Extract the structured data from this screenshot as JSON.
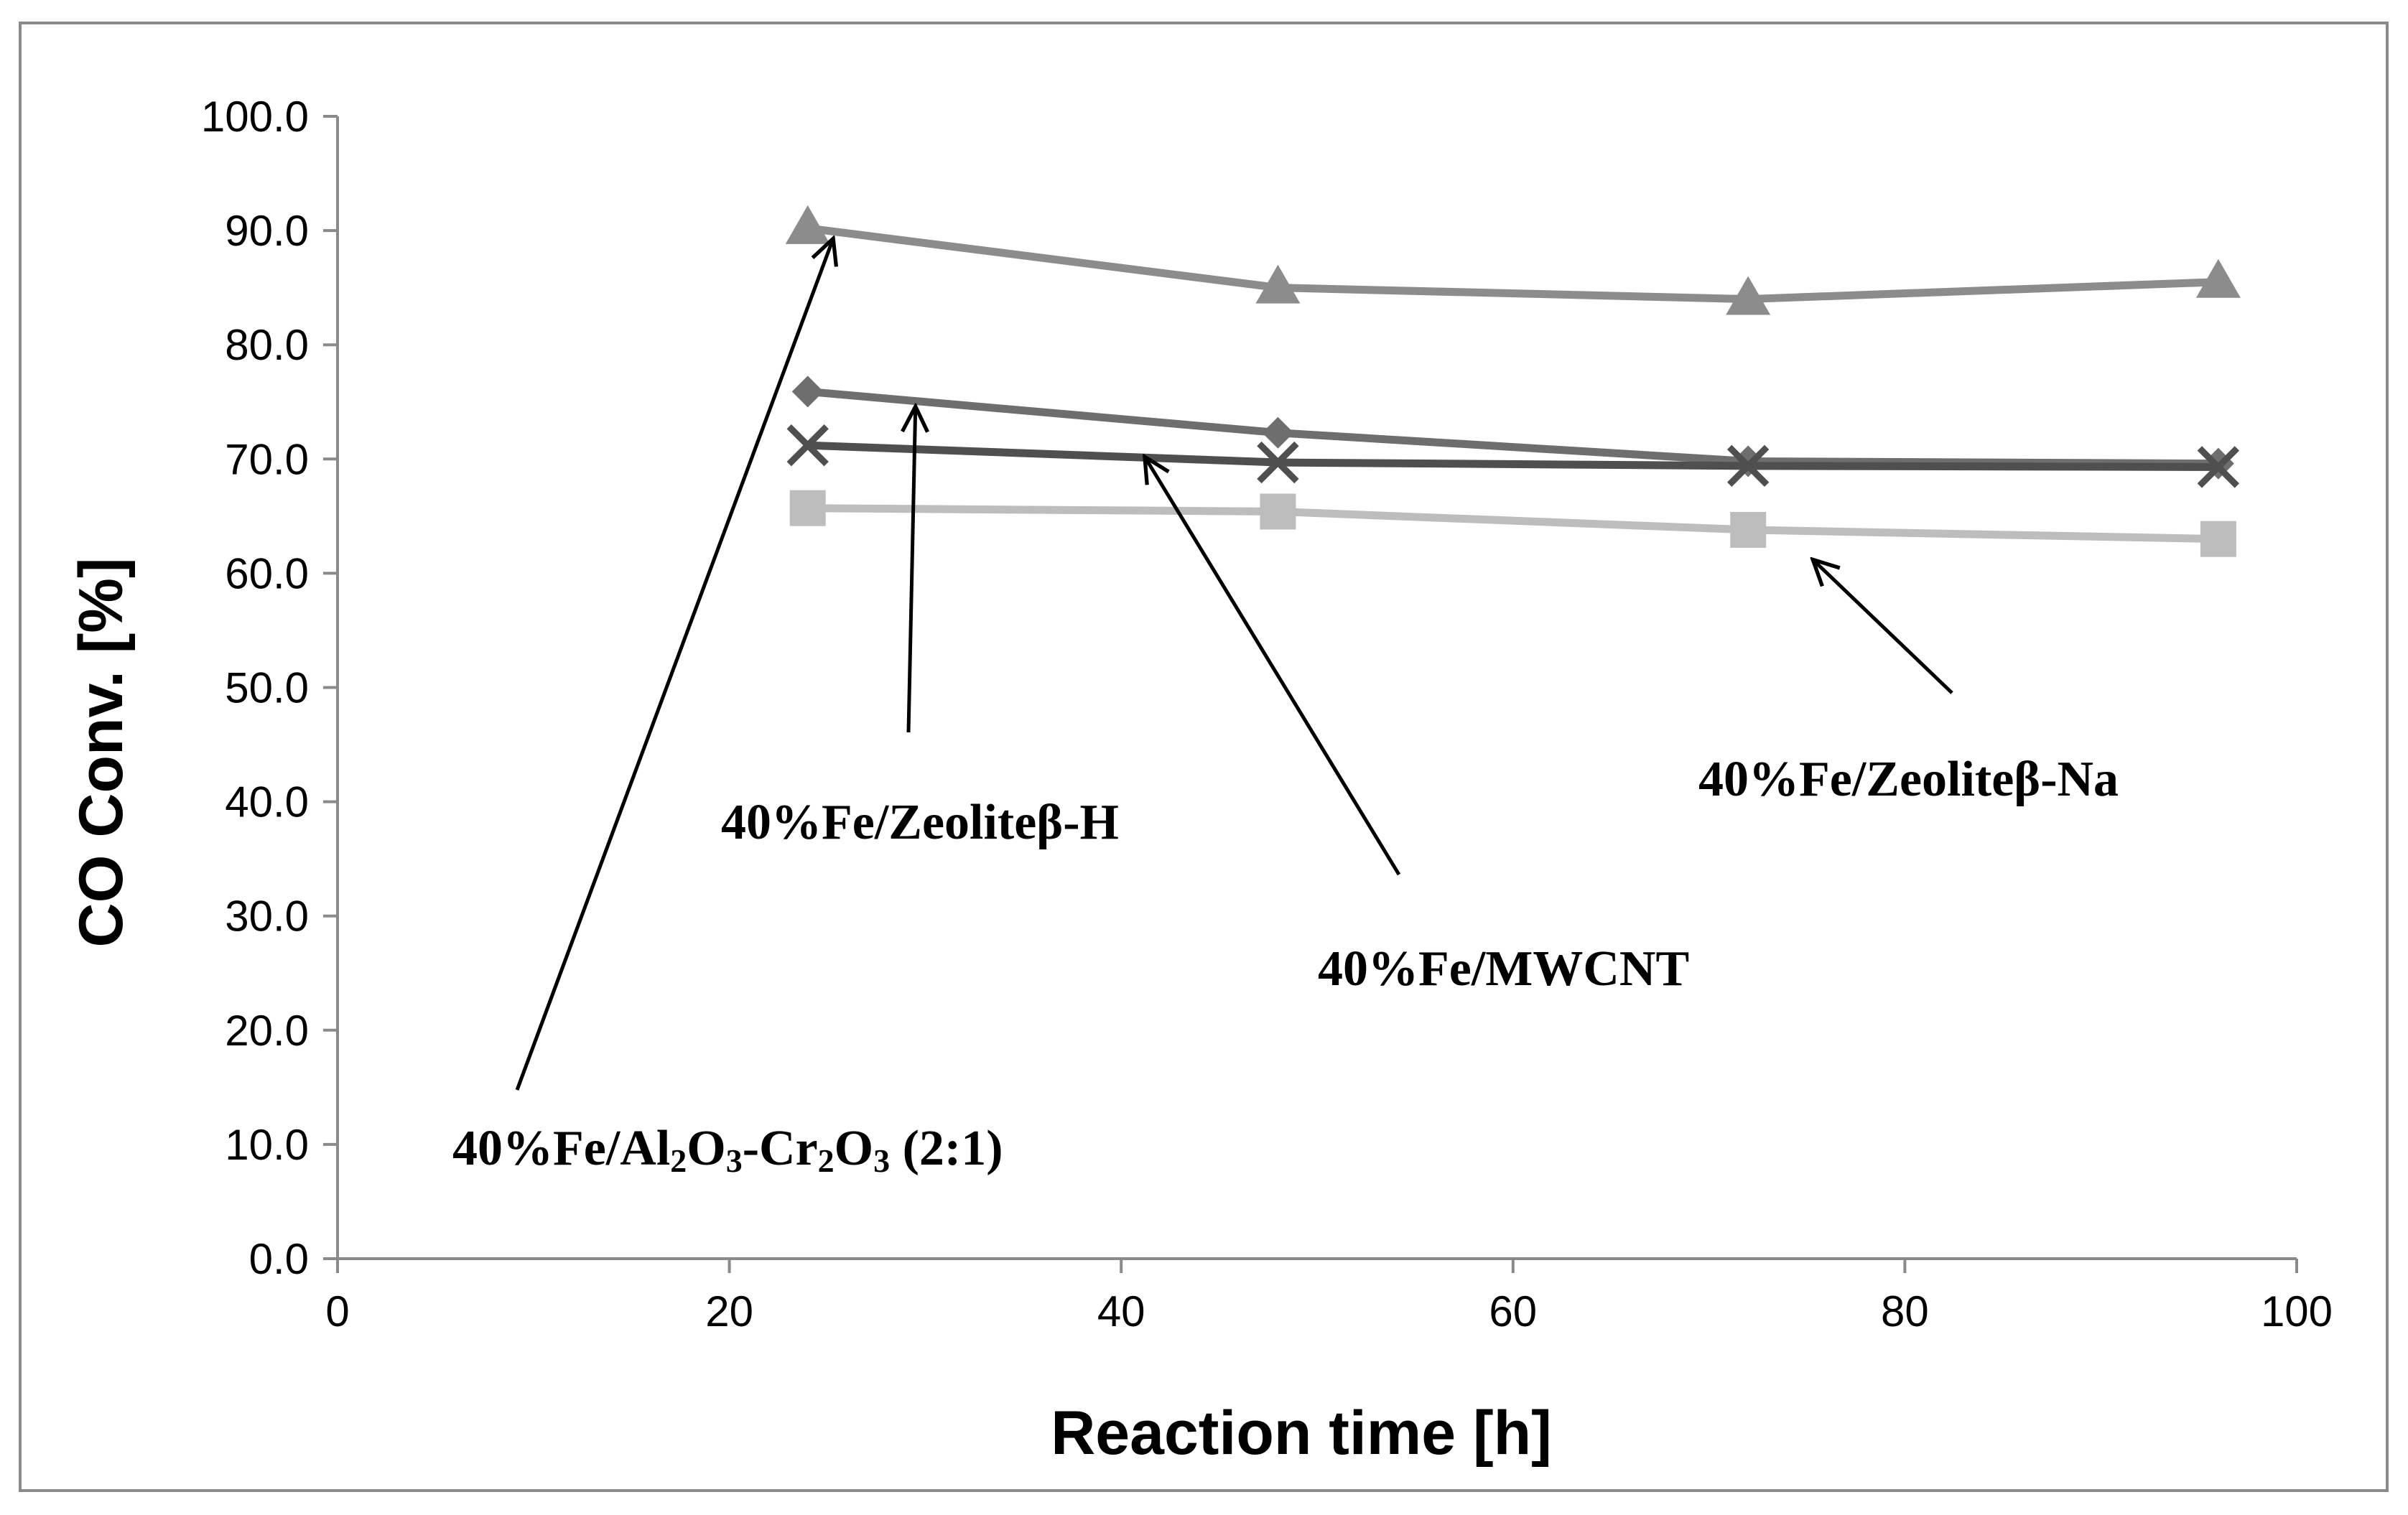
{
  "chart_data": {
    "type": "line",
    "xlabel": "Reaction time [h]",
    "ylabel": "CO Conv.  [%]",
    "xlim": [
      0,
      100
    ],
    "ylim": [
      0,
      100
    ],
    "x_ticks": [
      "0",
      "20",
      "40",
      "60",
      "80",
      "100"
    ],
    "y_ticks": [
      "0.0",
      "10.0",
      "20.0",
      "30.0",
      "40.0",
      "50.0",
      "60.0",
      "70.0",
      "80.0",
      "90.0",
      "100.0"
    ],
    "grid": false,
    "x": [
      24,
      48,
      72,
      96
    ],
    "series": [
      {
        "name": "40%Fe/Al2O3-Cr2O3 (2:1)",
        "marker": "triangle",
        "color": "#8c8c8c",
        "values": [
          90.2,
          85.0,
          84.0,
          85.5
        ]
      },
      {
        "name": "40%Fe/Zeoliteβ-H",
        "marker": "diamond",
        "color": "#6e6e6e",
        "values": [
          75.9,
          72.3,
          69.8,
          69.6
        ]
      },
      {
        "name": "40%Fe/MWCNT",
        "marker": "cross",
        "color": "#4f4f4f",
        "values": [
          71.2,
          69.7,
          69.4,
          69.3
        ]
      },
      {
        "name": "40%Fe/Zeoliteβ-Na",
        "marker": "square",
        "color": "#bdbdbd",
        "values": [
          65.7,
          65.4,
          63.8,
          63.0
        ]
      }
    ],
    "annotations": [
      {
        "label_parts": [
          {
            "t": "40%Fe/Al"
          },
          {
            "t": "2",
            "sub": true
          },
          {
            "t": "O"
          },
          {
            "t": "3",
            "sub": true
          },
          {
            "t": "-Cr"
          },
          {
            "t": "2",
            "sub": true
          },
          {
            "t": "O"
          },
          {
            "t": "3",
            "sub": true
          },
          {
            "t": " (2:1)"
          }
        ],
        "series_index": 0
      },
      {
        "label_parts": [
          {
            "t": "40%Fe/Zeoliteβ-H"
          }
        ],
        "series_index": 1
      },
      {
        "label_parts": [
          {
            "t": "40%Fe/MWCNT"
          }
        ],
        "series_index": 2
      },
      {
        "label_parts": [
          {
            "t": "40%Fe/Zeoliteβ-Na"
          }
        ],
        "series_index": 3
      }
    ]
  }
}
